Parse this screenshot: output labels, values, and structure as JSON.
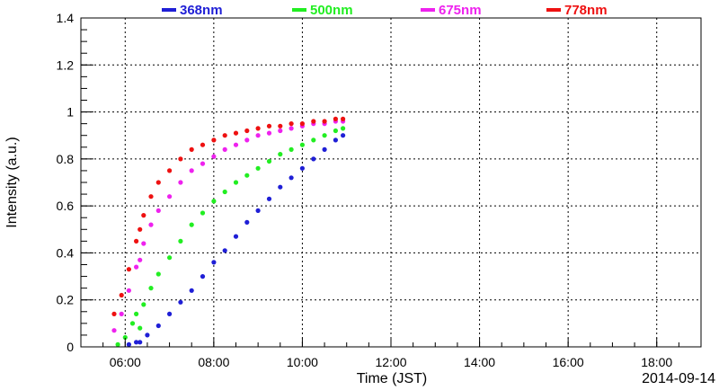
{
  "chart_data": {
    "type": "scatter",
    "xlabel": "Time (JST)",
    "ylabel": "Intensity (a.u.)",
    "date_label": "2014-09-14",
    "xlim": [
      "05:00",
      "19:00"
    ],
    "ylim": [
      0,
      1.4
    ],
    "x_ticks": [
      "06:00",
      "08:00",
      "10:00",
      "12:00",
      "14:00",
      "16:00",
      "18:00"
    ],
    "y_ticks": [
      "0",
      "0.2",
      "0.4",
      "0.6",
      "0.8",
      "1",
      "1.2",
      "1.4"
    ],
    "grid": true,
    "legend_position": "top",
    "series": [
      {
        "name": "368nm",
        "color": "#1f1fd6",
        "points": [
          [
            "06:05",
            0.01
          ],
          [
            "06:15",
            0.02
          ],
          [
            "06:20",
            0.02
          ],
          [
            "06:30",
            0.05
          ],
          [
            "06:45",
            0.09
          ],
          [
            "07:00",
            0.14
          ],
          [
            "07:15",
            0.19
          ],
          [
            "07:30",
            0.24
          ],
          [
            "07:45",
            0.3
          ],
          [
            "08:00",
            0.36
          ],
          [
            "08:15",
            0.41
          ],
          [
            "08:30",
            0.47
          ],
          [
            "08:45",
            0.53
          ],
          [
            "09:00",
            0.58
          ],
          [
            "09:15",
            0.63
          ],
          [
            "09:30",
            0.68
          ],
          [
            "09:45",
            0.72
          ],
          [
            "10:00",
            0.76
          ],
          [
            "10:15",
            0.8
          ],
          [
            "10:30",
            0.84
          ],
          [
            "10:45",
            0.88
          ],
          [
            "10:55",
            0.9
          ]
        ]
      },
      {
        "name": "500nm",
        "color": "#22ee22",
        "points": [
          [
            "05:50",
            0.01
          ],
          [
            "06:00",
            0.04
          ],
          [
            "06:10",
            0.1
          ],
          [
            "06:15",
            0.14
          ],
          [
            "06:20",
            0.08
          ],
          [
            "06:25",
            0.18
          ],
          [
            "06:35",
            0.25
          ],
          [
            "06:45",
            0.31
          ],
          [
            "07:00",
            0.38
          ],
          [
            "07:15",
            0.45
          ],
          [
            "07:30",
            0.52
          ],
          [
            "07:45",
            0.57
          ],
          [
            "08:00",
            0.62
          ],
          [
            "08:15",
            0.66
          ],
          [
            "08:30",
            0.7
          ],
          [
            "08:45",
            0.73
          ],
          [
            "09:00",
            0.76
          ],
          [
            "09:15",
            0.79
          ],
          [
            "09:30",
            0.82
          ],
          [
            "09:45",
            0.84
          ],
          [
            "10:00",
            0.86
          ],
          [
            "10:15",
            0.88
          ],
          [
            "10:30",
            0.9
          ],
          [
            "10:45",
            0.92
          ],
          [
            "10:55",
            0.93
          ]
        ]
      },
      {
        "name": "675nm",
        "color": "#ee22ee",
        "points": [
          [
            "05:45",
            0.07
          ],
          [
            "05:55",
            0.14
          ],
          [
            "06:05",
            0.24
          ],
          [
            "06:15",
            0.34
          ],
          [
            "06:20",
            0.37
          ],
          [
            "06:25",
            0.44
          ],
          [
            "06:35",
            0.52
          ],
          [
            "06:45",
            0.58
          ],
          [
            "07:00",
            0.64
          ],
          [
            "07:15",
            0.7
          ],
          [
            "07:30",
            0.75
          ],
          [
            "07:45",
            0.78
          ],
          [
            "08:00",
            0.81
          ],
          [
            "08:15",
            0.84
          ],
          [
            "08:30",
            0.86
          ],
          [
            "08:45",
            0.88
          ],
          [
            "09:00",
            0.9
          ],
          [
            "09:15",
            0.91
          ],
          [
            "09:30",
            0.92
          ],
          [
            "09:45",
            0.93
          ],
          [
            "10:00",
            0.94
          ],
          [
            "10:15",
            0.95
          ],
          [
            "10:30",
            0.95
          ],
          [
            "10:45",
            0.96
          ],
          [
            "10:55",
            0.96
          ]
        ]
      },
      {
        "name": "778nm",
        "color": "#ee1111",
        "points": [
          [
            "05:45",
            0.14
          ],
          [
            "05:55",
            0.22
          ],
          [
            "06:05",
            0.33
          ],
          [
            "06:15",
            0.45
          ],
          [
            "06:20",
            0.5
          ],
          [
            "06:25",
            0.56
          ],
          [
            "06:35",
            0.64
          ],
          [
            "06:45",
            0.7
          ],
          [
            "07:00",
            0.75
          ],
          [
            "07:15",
            0.8
          ],
          [
            "07:30",
            0.84
          ],
          [
            "07:45",
            0.86
          ],
          [
            "08:00",
            0.88
          ],
          [
            "08:15",
            0.9
          ],
          [
            "08:30",
            0.91
          ],
          [
            "08:45",
            0.92
          ],
          [
            "09:00",
            0.93
          ],
          [
            "09:15",
            0.94
          ],
          [
            "09:30",
            0.94
          ],
          [
            "09:45",
            0.95
          ],
          [
            "10:00",
            0.95
          ],
          [
            "10:15",
            0.96
          ],
          [
            "10:30",
            0.96
          ],
          [
            "10:45",
            0.97
          ],
          [
            "10:55",
            0.97
          ]
        ]
      }
    ]
  }
}
